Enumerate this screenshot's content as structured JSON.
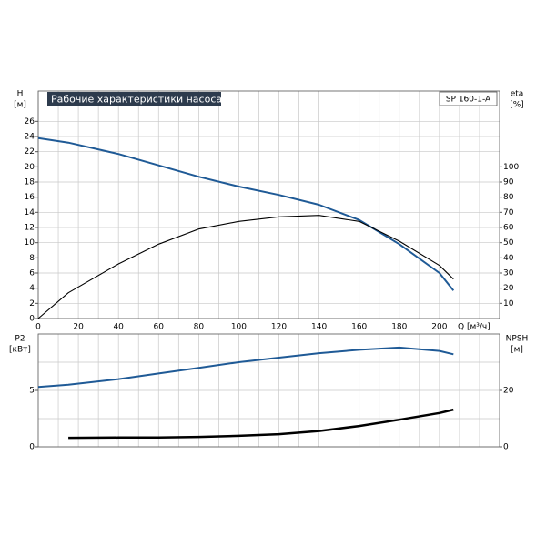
{
  "chart_data": [
    {
      "type": "line",
      "title": "Рабочие характеристики насоса",
      "model": "SP 160-1-A",
      "ylabel": "H",
      "yunit": "[м]",
      "y2label": "eta",
      "y2unit": "[%]",
      "xlabel": "Q [м³/ч]",
      "x": [
        0,
        15,
        40,
        60,
        80,
        100,
        120,
        140,
        160,
        180,
        200,
        207
      ],
      "series": [
        {
          "color": "#1f5a96",
          "values": [
            23.8,
            23.2,
            21.7,
            20.2,
            18.7,
            17.4,
            16.3,
            15.0,
            13.0,
            9.8,
            6.0,
            3.7
          ]
        },
        {
          "color": "#000000",
          "axis": "y2",
          "values": [
            0,
            17,
            36,
            49,
            59,
            64,
            67,
            68,
            64,
            51,
            35,
            26
          ]
        }
      ],
      "xlim": [
        0,
        230
      ],
      "xticks": [
        0,
        20,
        40,
        60,
        80,
        100,
        120,
        140,
        160,
        180,
        200
      ],
      "xgrid": [
        10,
        30,
        50,
        70,
        90,
        110,
        130,
        150,
        170,
        190,
        210,
        220
      ],
      "ylim": [
        0,
        30
      ],
      "yticks": [
        0,
        2,
        4,
        6,
        8,
        10,
        12,
        14,
        16,
        18,
        20,
        22,
        24,
        26
      ],
      "ygrid": [
        28
      ],
      "y2lim": [
        0,
        150
      ],
      "y2ticks": [
        10,
        20,
        30,
        40,
        50,
        60,
        70,
        80,
        90,
        100
      ],
      "grid": true
    },
    {
      "type": "line",
      "ylabel": "P2",
      "yunit": "[кВт]",
      "y2label": "NPSH",
      "y2unit": "[м]",
      "x": [
        0,
        15,
        40,
        60,
        80,
        100,
        120,
        140,
        160,
        180,
        200,
        207
      ],
      "series": [
        {
          "color": "#1f5a96",
          "values": [
            5.3,
            5.5,
            6.0,
            6.5,
            7.0,
            7.5,
            7.9,
            8.3,
            8.6,
            8.8,
            8.5,
            8.2
          ]
        },
        {
          "color": "#000000",
          "axis": "y2",
          "width": 2.5,
          "values": [
            null,
            3.2,
            3.3,
            3.3,
            3.5,
            3.9,
            4.5,
            5.6,
            7.4,
            9.6,
            12.0,
            13.2
          ]
        }
      ],
      "xlim": [
        0,
        230
      ],
      "xgrid": [
        10,
        20,
        30,
        40,
        50,
        60,
        70,
        80,
        90,
        100,
        110,
        120,
        130,
        140,
        150,
        160,
        170,
        180,
        190,
        200,
        210,
        220
      ],
      "ylim": [
        0,
        10
      ],
      "yticks": [
        0,
        5
      ],
      "ygrid": [
        2.5,
        7.5
      ],
      "y2lim": [
        0,
        40
      ],
      "y2ticks": [
        0,
        20
      ],
      "grid": true
    }
  ]
}
